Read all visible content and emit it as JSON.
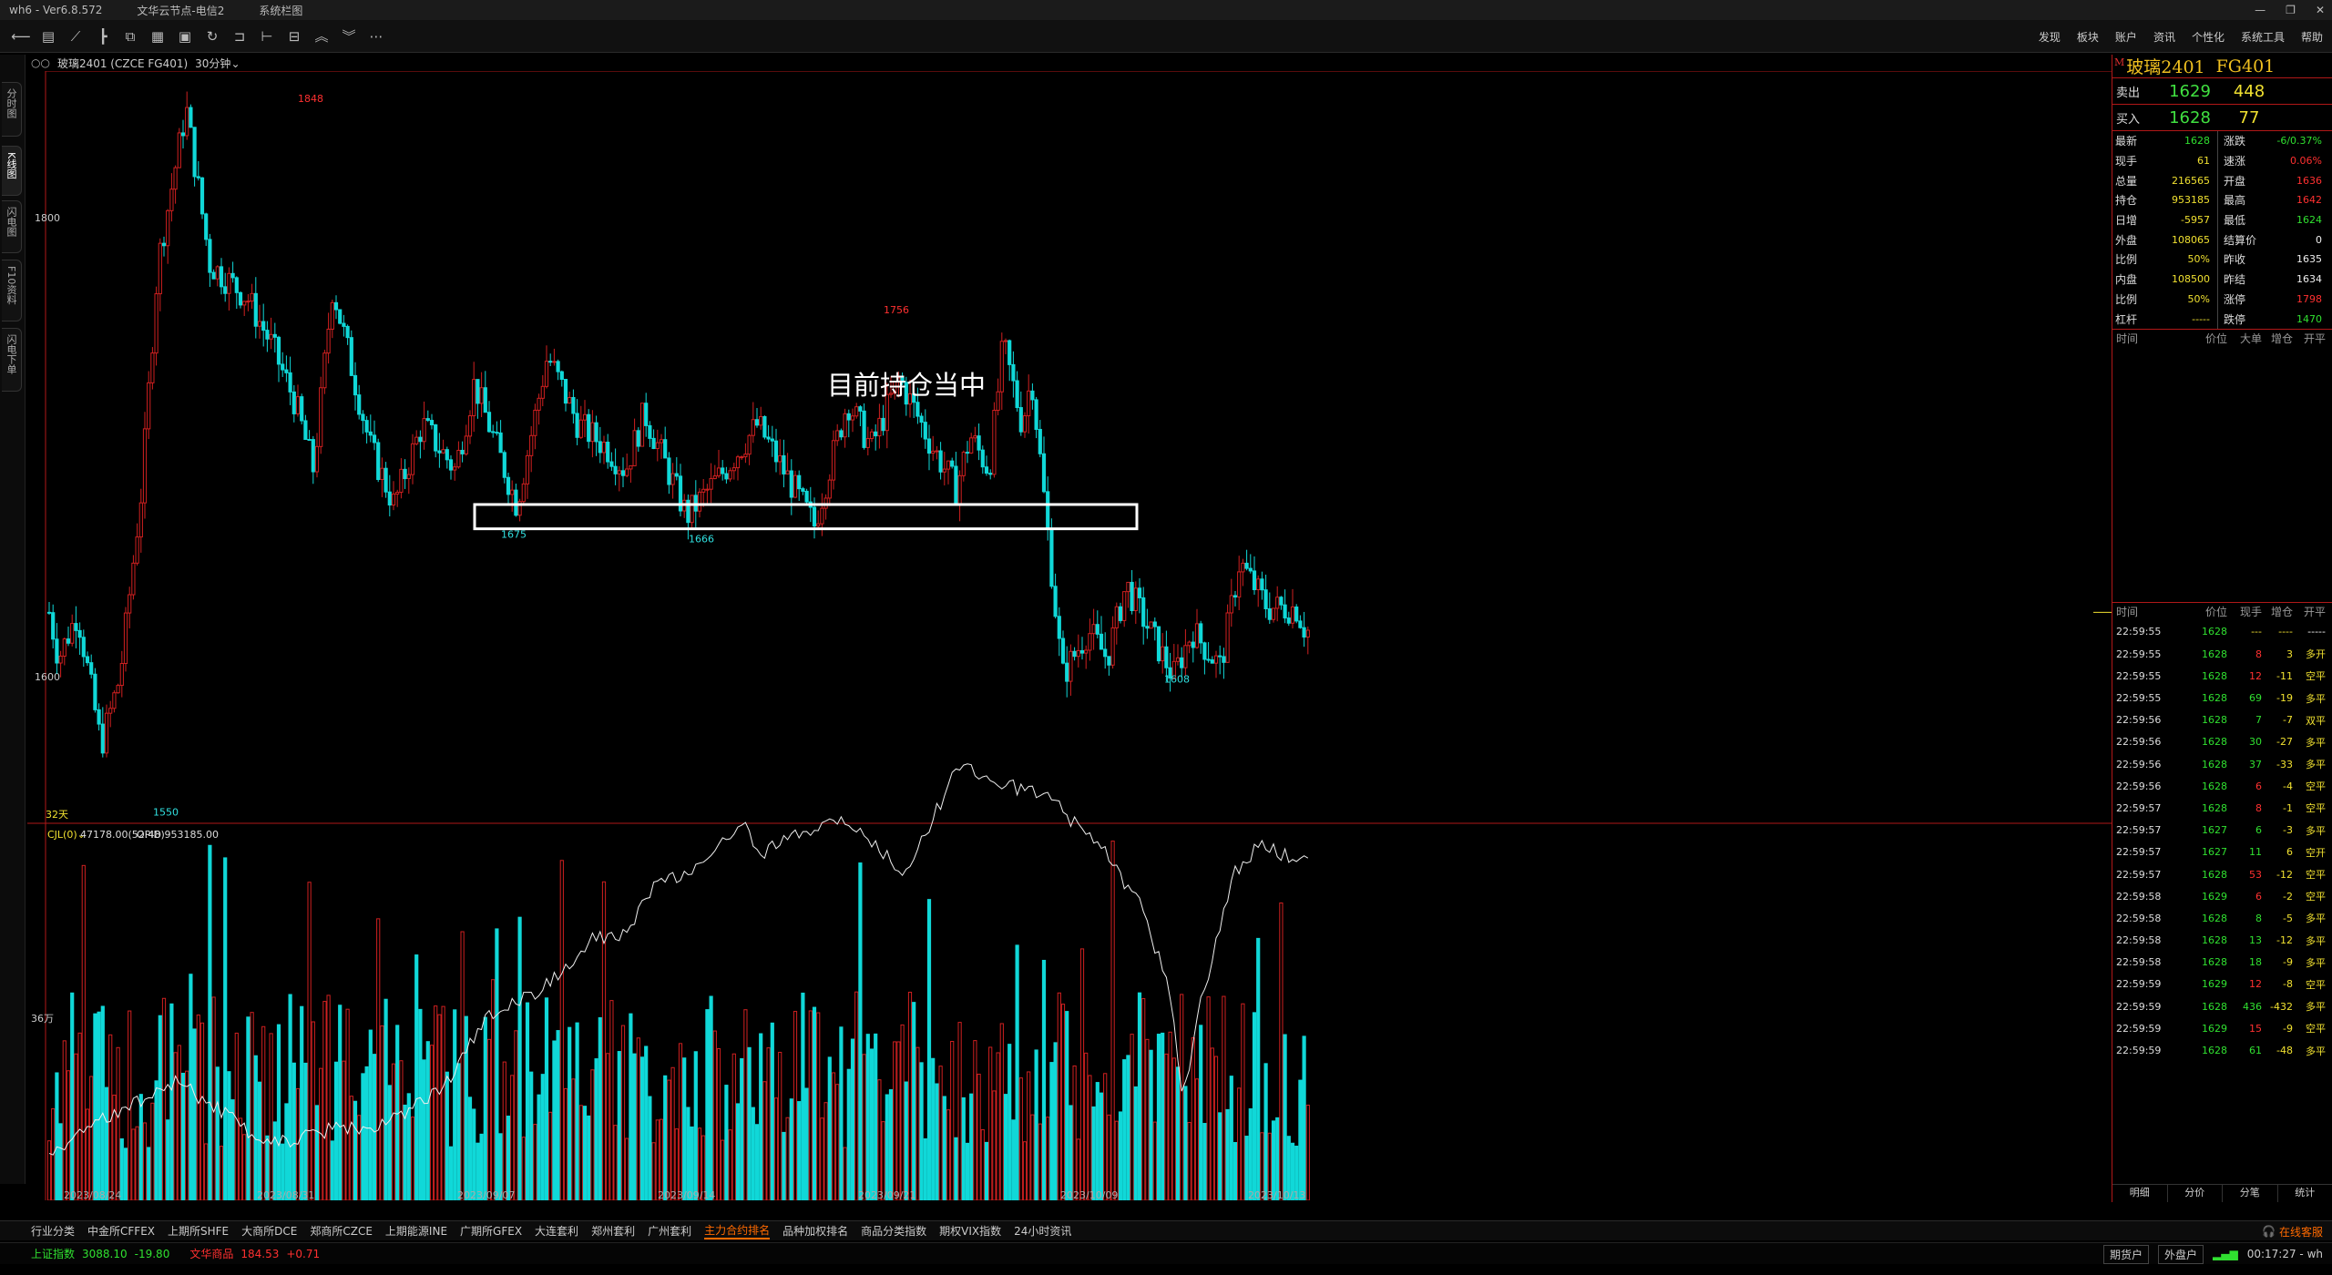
{
  "titlebar": {
    "app": "wh6  -  Ver6.8.572",
    "server": "文华云节点-电信2",
    "menu": "系统栏图"
  },
  "topmenu": [
    "发现",
    "板块",
    "账户",
    "资讯",
    "个性化",
    "系统工具",
    "帮助"
  ],
  "toolbar_icons": [
    "back-icon",
    "list-icon",
    "line-chart-icon",
    "candlestick-icon",
    "multi-window-icon",
    "grid-icon",
    "save-icon",
    "refresh-icon",
    "draw-icon",
    "ladder-icon",
    "box-icon",
    "up-icon",
    "down-icon",
    "more-icon"
  ],
  "left_tabs": [
    "分时图",
    "K线图",
    "闪电图",
    "F10资料",
    "闪电下单"
  ],
  "chart_header": {
    "symbol": "玻璃2401 (CZCE FG401)",
    "period": "30分钟"
  },
  "chart_data": [
    {
      "type": "candlestick",
      "price_axis_labels": [
        "1800",
        "1600"
      ],
      "annotations": [
        {
          "label": "1848",
          "kind": "high"
        },
        {
          "label": "1756",
          "kind": "high"
        },
        {
          "label": "1675",
          "kind": "low"
        },
        {
          "label": "1666",
          "kind": "low"
        },
        {
          "label": "1608",
          "kind": "low"
        },
        {
          "label": "1550",
          "kind": "low"
        }
      ],
      "support_box": [
        1666,
        1675
      ],
      "overlay_text": "目前持仓当中",
      "bar_count_label": "32天",
      "ylim": [
        1540,
        1860
      ]
    },
    {
      "type": "bar",
      "indicator_label": "CJL(0)",
      "volume_value": "47178.00(52:48)",
      "open_interest": "OPID 953185.00",
      "axis_label": "36万",
      "x_dates": [
        "2023/08/24",
        "2023/08/31",
        "2023/09/07",
        "2023/09/14",
        "2023/09/21",
        "2023/10/09",
        "2023/10/13"
      ]
    }
  ],
  "right_panel": {
    "name": "玻璃2401",
    "code": "FG401",
    "ask_label": "卖出",
    "ask_price": "1629",
    "ask_vol": "448",
    "bid_label": "买入",
    "bid_price": "1628",
    "bid_vol": "77",
    "quote_rows": [
      {
        "l1": "最新",
        "v1": "1628",
        "c1": "g",
        "l2": "涨跌",
        "v2": "-6/0.37%",
        "c2": "g"
      },
      {
        "l1": "现手",
        "v1": "61",
        "c1": "y",
        "l2": "速涨",
        "v2": "0.06%",
        "c2": "r"
      },
      {
        "l1": "总量",
        "v1": "216565",
        "c1": "y",
        "l2": "开盘",
        "v2": "1636",
        "c2": "r"
      },
      {
        "l1": "持仓",
        "v1": "953185",
        "c1": "y",
        "l2": "最高",
        "v2": "1642",
        "c2": "r"
      },
      {
        "l1": "日增",
        "v1": "-5957",
        "c1": "y",
        "l2": "最低",
        "v2": "1624",
        "c2": "g"
      },
      {
        "l1": "外盘",
        "v1": "108065",
        "c1": "y",
        "l2": "结算价",
        "v2": "0",
        "c2": "w"
      },
      {
        "l1": "比例",
        "v1": "50%",
        "c1": "y",
        "l2": "昨收",
        "v2": "1635",
        "c2": "w"
      },
      {
        "l1": "内盘",
        "v1": "108500",
        "c1": "y",
        "l2": "昨结",
        "v2": "1634",
        "c2": "w"
      },
      {
        "l1": "比例",
        "v1": "50%",
        "c1": "y",
        "l2": "涨停",
        "v2": "1798",
        "c2": "r"
      },
      {
        "l1": "杠杆",
        "v1": "-----",
        "c1": "y",
        "l2": "跌停",
        "v2": "1470",
        "c2": "g"
      }
    ],
    "tick_header_top": [
      "时间",
      "价位",
      "大单",
      "增仓",
      "开平"
    ],
    "tick_header": [
      "时间",
      "价位",
      "现手",
      "增仓",
      "开平"
    ],
    "ticks": [
      {
        "t": "22:59:55",
        "p": "1628",
        "v": "---",
        "c": "----",
        "k": "-----",
        "vc": "y",
        "cc": "y",
        "kc": "w"
      },
      {
        "t": "22:59:55",
        "p": "1628",
        "v": "8",
        "c": "3",
        "k": "多开",
        "vc": "r",
        "cc": "y",
        "kc": "y"
      },
      {
        "t": "22:59:55",
        "p": "1628",
        "v": "12",
        "c": "-11",
        "k": "空平",
        "vc": "r",
        "cc": "y",
        "kc": "y"
      },
      {
        "t": "22:59:55",
        "p": "1628",
        "v": "69",
        "c": "-19",
        "k": "多平",
        "vc": "g",
        "cc": "y",
        "kc": "y"
      },
      {
        "t": "22:59:56",
        "p": "1628",
        "v": "7",
        "c": "-7",
        "k": "双平",
        "vc": "g",
        "cc": "y",
        "kc": "y"
      },
      {
        "t": "22:59:56",
        "p": "1628",
        "v": "30",
        "c": "-27",
        "k": "多平",
        "vc": "g",
        "cc": "y",
        "kc": "y"
      },
      {
        "t": "22:59:56",
        "p": "1628",
        "v": "37",
        "c": "-33",
        "k": "多平",
        "vc": "g",
        "cc": "y",
        "kc": "y"
      },
      {
        "t": "22:59:56",
        "p": "1628",
        "v": "6",
        "c": "-4",
        "k": "空平",
        "vc": "r",
        "cc": "y",
        "kc": "y"
      },
      {
        "t": "22:59:57",
        "p": "1628",
        "v": "8",
        "c": "-1",
        "k": "空平",
        "vc": "r",
        "cc": "y",
        "kc": "y"
      },
      {
        "t": "22:59:57",
        "p": "1627",
        "v": "6",
        "c": "-3",
        "k": "多平",
        "vc": "g",
        "cc": "y",
        "kc": "y"
      },
      {
        "t": "22:59:57",
        "p": "1627",
        "v": "11",
        "c": "6",
        "k": "空开",
        "vc": "g",
        "cc": "y",
        "kc": "y"
      },
      {
        "t": "22:59:57",
        "p": "1628",
        "v": "53",
        "c": "-12",
        "k": "空平",
        "vc": "r",
        "cc": "y",
        "kc": "y"
      },
      {
        "t": "22:59:58",
        "p": "1629",
        "v": "6",
        "c": "-2",
        "k": "空平",
        "vc": "r",
        "cc": "y",
        "kc": "y"
      },
      {
        "t": "22:59:58",
        "p": "1628",
        "v": "8",
        "c": "-5",
        "k": "多平",
        "vc": "g",
        "cc": "y",
        "kc": "y"
      },
      {
        "t": "22:59:58",
        "p": "1628",
        "v": "13",
        "c": "-12",
        "k": "多平",
        "vc": "g",
        "cc": "y",
        "kc": "y"
      },
      {
        "t": "22:59:58",
        "p": "1628",
        "v": "18",
        "c": "-9",
        "k": "多平",
        "vc": "g",
        "cc": "y",
        "kc": "y"
      },
      {
        "t": "22:59:59",
        "p": "1629",
        "v": "12",
        "c": "-8",
        "k": "空平",
        "vc": "r",
        "cc": "y",
        "kc": "y"
      },
      {
        "t": "22:59:59",
        "p": "1628",
        "v": "436",
        "c": "-432",
        "k": "多平",
        "vc": "g",
        "cc": "y",
        "kc": "y"
      },
      {
        "t": "22:59:59",
        "p": "1629",
        "v": "15",
        "c": "-9",
        "k": "空平",
        "vc": "r",
        "cc": "y",
        "kc": "y"
      },
      {
        "t": "22:59:59",
        "p": "1628",
        "v": "61",
        "c": "-48",
        "k": "多平",
        "vc": "g",
        "cc": "y",
        "kc": "y"
      }
    ],
    "bottom_tabs": [
      "明细",
      "分价",
      "分笔",
      "统计"
    ]
  },
  "bottom_tabs": [
    "行业分类",
    "中金所CFFEX",
    "上期所SHFE",
    "大商所DCE",
    "郑商所CZCE",
    "上期能源INE",
    "广期所GFEX",
    "大连套利",
    "郑州套利",
    "广州套利",
    "主力合约排名",
    "品种加权排名",
    "商品分类指数",
    "期权VIX指数",
    "24小时资讯"
  ],
  "bottom_tabs_active": 10,
  "online_service": "在线客服",
  "status": {
    "idx1_name": "上证指数",
    "idx1_val": "3088.10",
    "idx1_chg": "-19.80",
    "idx2_name": "文华商品",
    "idx2_val": "184.53",
    "idx2_chg": "+0.71",
    "btn1": "期货户",
    "btn2": "外盘户",
    "clock": "00:17:27 - wh"
  },
  "colors": {
    "up": "#d02020",
    "down": "#10d8d8",
    "frame": "#b01818",
    "accent": "#ff6a00"
  }
}
